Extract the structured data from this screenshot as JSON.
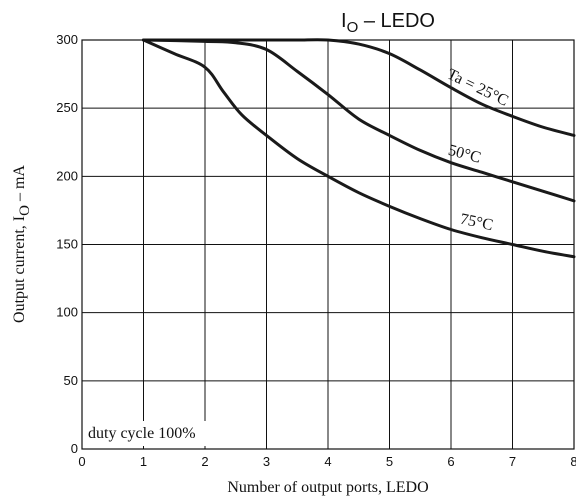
{
  "chart_data": {
    "type": "line",
    "title": "I",
    "title_sub": "O",
    "title_rest": " – LEDO",
    "xlabel": "Number of output ports, LEDO",
    "ylabel": "Output current, I",
    "ylabel_sub": "O",
    "ylabel_rest": " – mA",
    "xlim": [
      0,
      8
    ],
    "ylim": [
      0,
      300
    ],
    "xticks": [
      "0",
      "1",
      "2",
      "3",
      "4",
      "5",
      "6",
      "7",
      "8"
    ],
    "yticks": [
      "0",
      "50",
      "100",
      "150",
      "200",
      "250",
      "300"
    ],
    "grid": true,
    "note": "duty cycle 100%",
    "series": [
      {
        "name": "Ta = 25°C",
        "x": [
          1,
          2,
          3,
          3.5,
          4,
          4.5,
          5,
          5.5,
          6,
          6.5,
          7,
          7.5,
          8
        ],
        "y": [
          300,
          300,
          300,
          300,
          300,
          297,
          290,
          278,
          265,
          253,
          244,
          236,
          230
        ]
      },
      {
        "name": "50°C",
        "x": [
          1,
          2,
          2.5,
          3,
          3.5,
          4,
          4.5,
          5,
          5.5,
          6,
          6.5,
          7,
          7.5,
          8
        ],
        "y": [
          300,
          299,
          298,
          293,
          277,
          260,
          242,
          230,
          219,
          210,
          203,
          196,
          189,
          182
        ]
      },
      {
        "name": "75°C",
        "x": [
          1,
          1.5,
          2,
          2.3,
          2.6,
          3,
          3.5,
          4,
          4.5,
          5,
          5.5,
          6,
          6.5,
          7,
          7.5,
          8
        ],
        "y": [
          300,
          290,
          280,
          262,
          245,
          230,
          213,
          200,
          188,
          178,
          169,
          161,
          155,
          150,
          145,
          141
        ]
      }
    ]
  }
}
